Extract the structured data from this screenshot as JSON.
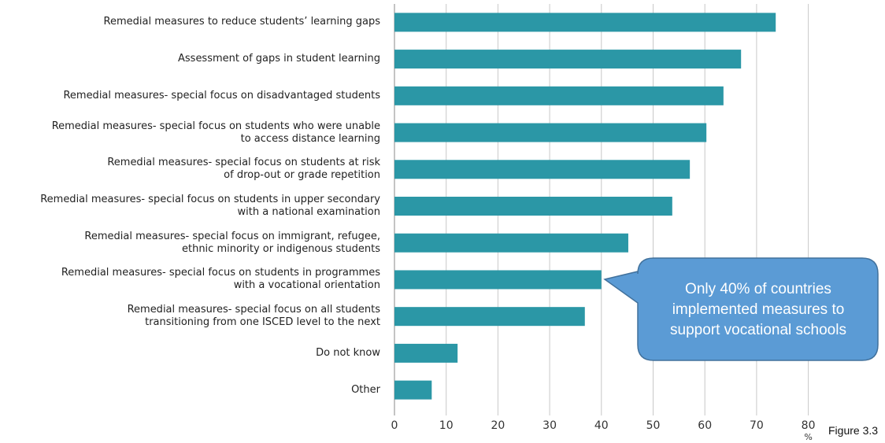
{
  "chart_data": {
    "type": "barh",
    "categories": [
      "Remedial measures to reduce students’ learning gaps",
      "Assessment of gaps in student learning",
      "Remedial measures- special focus on disadvantaged students",
      "Remedial measures- special focus on students who were unable\nto access distance learning",
      "Remedial measures- special focus on students at risk\nof drop-out or grade repetition",
      "Remedial measures- special focus on students in upper secondary\nwith a national examination",
      "Remedial measures- special focus on immigrant, refugee,\nethnic minority or indigenous students",
      "Remedial measures- special focus on students in programmes\nwith a vocational orientation",
      "Remedial measures- special focus on all students\ntransitioning from one ISCED level to the next",
      "Do not know",
      "Other"
    ],
    "values": [
      73.7,
      67,
      63.6,
      60.3,
      57.1,
      53.7,
      45.2,
      40,
      36.8,
      12.2,
      7.2
    ],
    "color": "#2b97a6",
    "xlim": [
      0,
      80
    ],
    "xticks": [
      0,
      10,
      20,
      30,
      40,
      50,
      60,
      70,
      80
    ],
    "xlabel": "%",
    "grid": true,
    "annotation": "Only 40% of countries\nimplemented measures to\nsupport vocational schools",
    "caption": "Figure 3.3"
  }
}
